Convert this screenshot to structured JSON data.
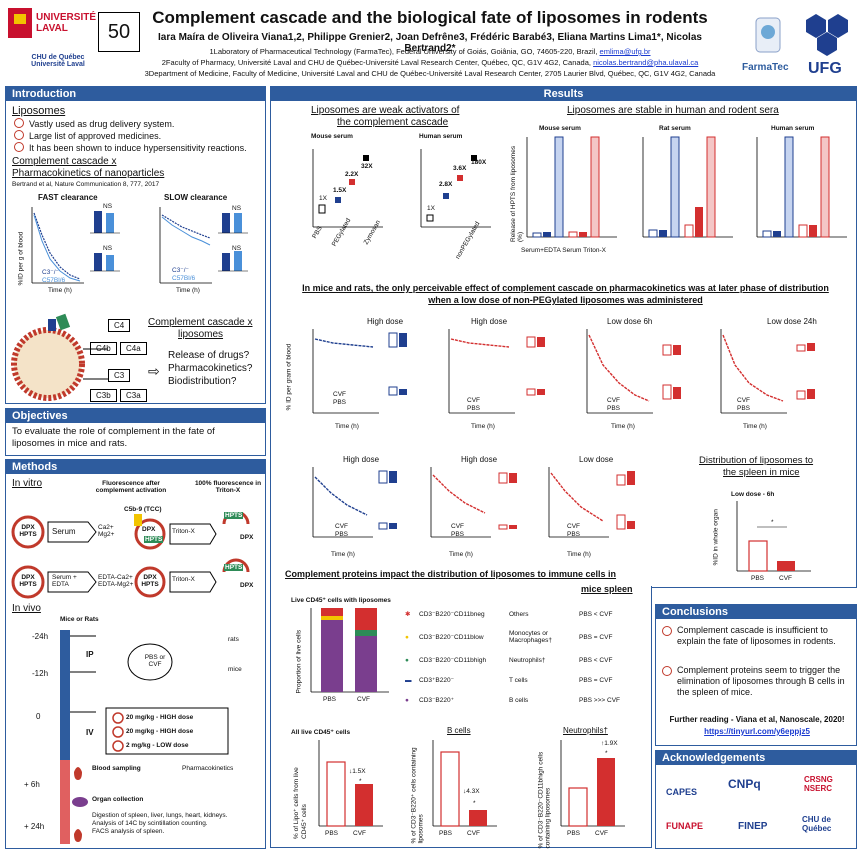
{
  "header": {
    "poster_number": "50",
    "title": "Complement cascade and the biological fate of liposomes in rodents",
    "authors": "Iara Maíra de Oliveira Viana1,2, Philippe Grenier2, Joan Defrêne3, Frédéric Barabé3, Eliana Martins Lima1*, Nicolas Bertrand2*",
    "aff1": "1Laboratory of Pharmaceutical Technology (FarmaTec), Federal University of Goiás, Goiânia, GO, 74605-220, Brazil,",
    "aff1_email": "emlima@ufg.br",
    "aff2": "2Faculty of Pharmacy, Université Laval and CHU de Québec-Université Laval Research Center, Québec, QC, G1V 4G2, Canada,",
    "aff2_email": "nicolas.bertrand@pha.ulaval.ca",
    "aff3": "3Department of Medicine, Faculty of Medicine, Université Laval and CHU de Québec-Université Laval Research Center, 2705 Laurier Blvd, Québec, QC, G1V 4G2, Canada",
    "logo_laval": "UNIVERSITÉ LAVAL",
    "logo_chu": "CHU de Québec Université Laval",
    "logo_farmatec": "FarmaTec",
    "logo_ufg": "UFG"
  },
  "intro": {
    "title": "Introduction",
    "lipo_heading": "Liposomes",
    "bullets": [
      "Vastly used as drug delivery system.",
      "Large list of approved medicines.",
      "It has been shown to induce hypersensitivity reactions."
    ],
    "cascade_heading_1": "Complement cascade x",
    "cascade_heading_2": "Pharmacokinetics of nanoparticles",
    "citation": "Bertrand et al, Nature Communication 8, 777, 2017",
    "fast": "FAST clearance",
    "slow": "SLOW clearance",
    "ylabel_pk": "%ID per g of blood",
    "xlabel_pk": "Time (h)",
    "legend_c3": "C3⁻/⁻",
    "legend_bl6": "C57Bl/6",
    "ns": "NS",
    "c4": "C4",
    "c4b": "C4b",
    "c4a": "C4a",
    "c3": "C3",
    "c3b": "C3b",
    "c3a": "C3a",
    "cascade_lipo_1": "Complement cascade x",
    "cascade_lipo_2": "liposomes",
    "q1": "Release of drugs?",
    "q2": "Pharmacokinetics?",
    "q3": "Biodistribution?"
  },
  "objectives": {
    "title": "Objectives",
    "text": "To evaluate the role of complement in the fate of liposomes in mice and rats."
  },
  "methods": {
    "title": "Methods",
    "invitro": "In vitro",
    "fluor_after": "Fluorescence after complement activation",
    "fluor_100": "100% fluorescence in Triton-X",
    "c5b9": "C5b-9 (TCC)",
    "dpx_hpts": "DPX HPTS",
    "serum": "Serum",
    "serum_edta": "Serum + EDTA",
    "ca_mg": "Ca2+ Mg2+",
    "edta_ca_mg": "EDTA-Ca2+ EDTA-Mg2+",
    "triton": "Triton-X",
    "hpts": "HPTS",
    "dpx": "DPX",
    "invivo": "In vivo",
    "mice_rats": "Mice or Rats",
    "t_m24": "-24h",
    "t_m12": "-12h",
    "t_0": "0",
    "t_6": "+ 6h",
    "t_24": "+ 24h",
    "ip": "IP",
    "iv": "IV",
    "pbs_cvf": "PBS or CVF",
    "rats": "rats",
    "mice": "mice",
    "dose1": "20 mg/kg - HIGH dose",
    "dose2": "20 mg/kg - HIGH dose",
    "dose3": "2 mg/kg - LOW dose",
    "blood": "Blood sampling",
    "pk": "Pharmacokinetics",
    "organ": "Organ collection",
    "digestion": "Digestion of spleen, liver, lungs, heart, kidneys.",
    "analysis": "Analysis of 14C by scintillation counting.",
    "facs": "FACS analysis of spleen."
  },
  "results": {
    "title": "Results",
    "weak_1": "Liposomes are weak activators of",
    "weak_2": "the complement cascade",
    "mouse_serum": "Mouse serum",
    "human_serum": "Human serum",
    "rat_serum": "Rat serum",
    "c5a_ylabel_mouse": "C5a concentration in mouse serum (ng.mL⁻¹)",
    "c5a_ylabel_human": "C5a concentration in human serum (ng.mL⁻¹)",
    "c5a_cats": [
      "PBS",
      "PEGylated",
      "nonPEGylated",
      "Zymosan"
    ],
    "mouse_folds": [
      "1X",
      "1.5X",
      "2.2X",
      "32X"
    ],
    "human_folds": [
      "1X",
      "2.8X",
      "3.6X",
      "180X"
    ],
    "stable": "Liposomes are stable in human and rodent sera",
    "hpts_ylabel": "Release of HPTS from liposomes (%)",
    "hpts_cats": [
      "Serum+EDTA",
      "Serum",
      "Triton-X"
    ],
    "mouse_vals": [
      "3",
      "3",
      "3",
      "3"
    ],
    "rat_vals": [
      "6",
      "6",
      "12",
      "12"
    ],
    "human_vals": [
      "6",
      "6",
      "12",
      "12"
    ],
    "pk_heading_1": "In mice and rats, the only perceivable effect of complement cascade on pharmacokinetics was at later phase of distribution",
    "pk_heading_2": "when a low dose of non-PEGylated liposomes was administered",
    "high_dose": "High dose",
    "low_6h": "Low dose 6h",
    "low_24h": "Low dose 24h",
    "low_dose": "Low dose",
    "pk_ylabel": "% ID per gram of blood",
    "pk_xlabel": "Time (h)",
    "cvf": "CVF",
    "pbs": "PBS",
    "auc": "AUC₀₋ₜ (%ID·h·g⁻¹)",
    "ka": "Ka (h⁻¹)",
    "spleen_1": "Distribution of liposomes to",
    "spleen_2": "the spleen in mice",
    "spleen_sub": "Low dose - 6h",
    "spleen_ylabel": "%ID in whole organ",
    "immune_1": "Complement proteins impact the distribution of liposomes to immune cells in",
    "immune_2": "mice spleen",
    "live_cd45": "Live CD45⁺ cells with liposomes",
    "prop_ylabel": "Proportion of live cells",
    "legend": [
      {
        "cell": "CD3⁻B220⁻CD11bneg",
        "type": "Others",
        "result": "PBS < CVF"
      },
      {
        "cell": "CD3⁻B220⁻CD11blow",
        "type": "Monocytes or Macrophages†",
        "result": "PBS = CVF"
      },
      {
        "cell": "CD3⁻B220⁻CD11bhigh",
        "type": "Neutrophils†",
        "result": "PBS < CVF"
      },
      {
        "cell": "CD3⁺B220⁻",
        "type": "T cells",
        "result": "PBS = CVF"
      },
      {
        "cell": "CD3⁻B220⁺",
        "type": "B cells",
        "result": "PBS >>> CVF"
      }
    ],
    "all_live": "All live CD45⁺ cells",
    "b_cells": "B cells",
    "neutrophils": "Neutrophils†",
    "lipo_ylabel": "% of Lipo⁺ cells from live CD45⁺ cells",
    "b_ylabel": "% of CD3⁻B220⁺ cells containing liposomes",
    "n_ylabel": "% of CD3⁻B220⁻CD11bhigh cells containing liposomes",
    "fold_15": "↓1.5X",
    "fold_43": "↓4.3X",
    "fold_19": "↑1.9X",
    "star": "*"
  },
  "conclusions": {
    "title": "Conclusions",
    "c1": "Complement cascade is insufficient to explain the fate of liposomes in rodents.",
    "c2": "Complement proteins seem to trigger the elimination of liposomes through B cells in the spleen of mice.",
    "further": "Further reading - Viana et al, Nanoscale, 2020!",
    "link": "https://tinyurl.com/y6eppjz5"
  },
  "ack": {
    "title": "Acknowledgements",
    "capes": "CAPES",
    "cnpq": "CNPq",
    "crsng": "CRSNG NSERC",
    "funape": "FUNAPE",
    "finep": "FINEP",
    "chu": "CHU de Québec"
  },
  "colors": {
    "blue": "#2e5c9e",
    "red": "#d32f2f",
    "darkblue": "#1f3f8f"
  }
}
